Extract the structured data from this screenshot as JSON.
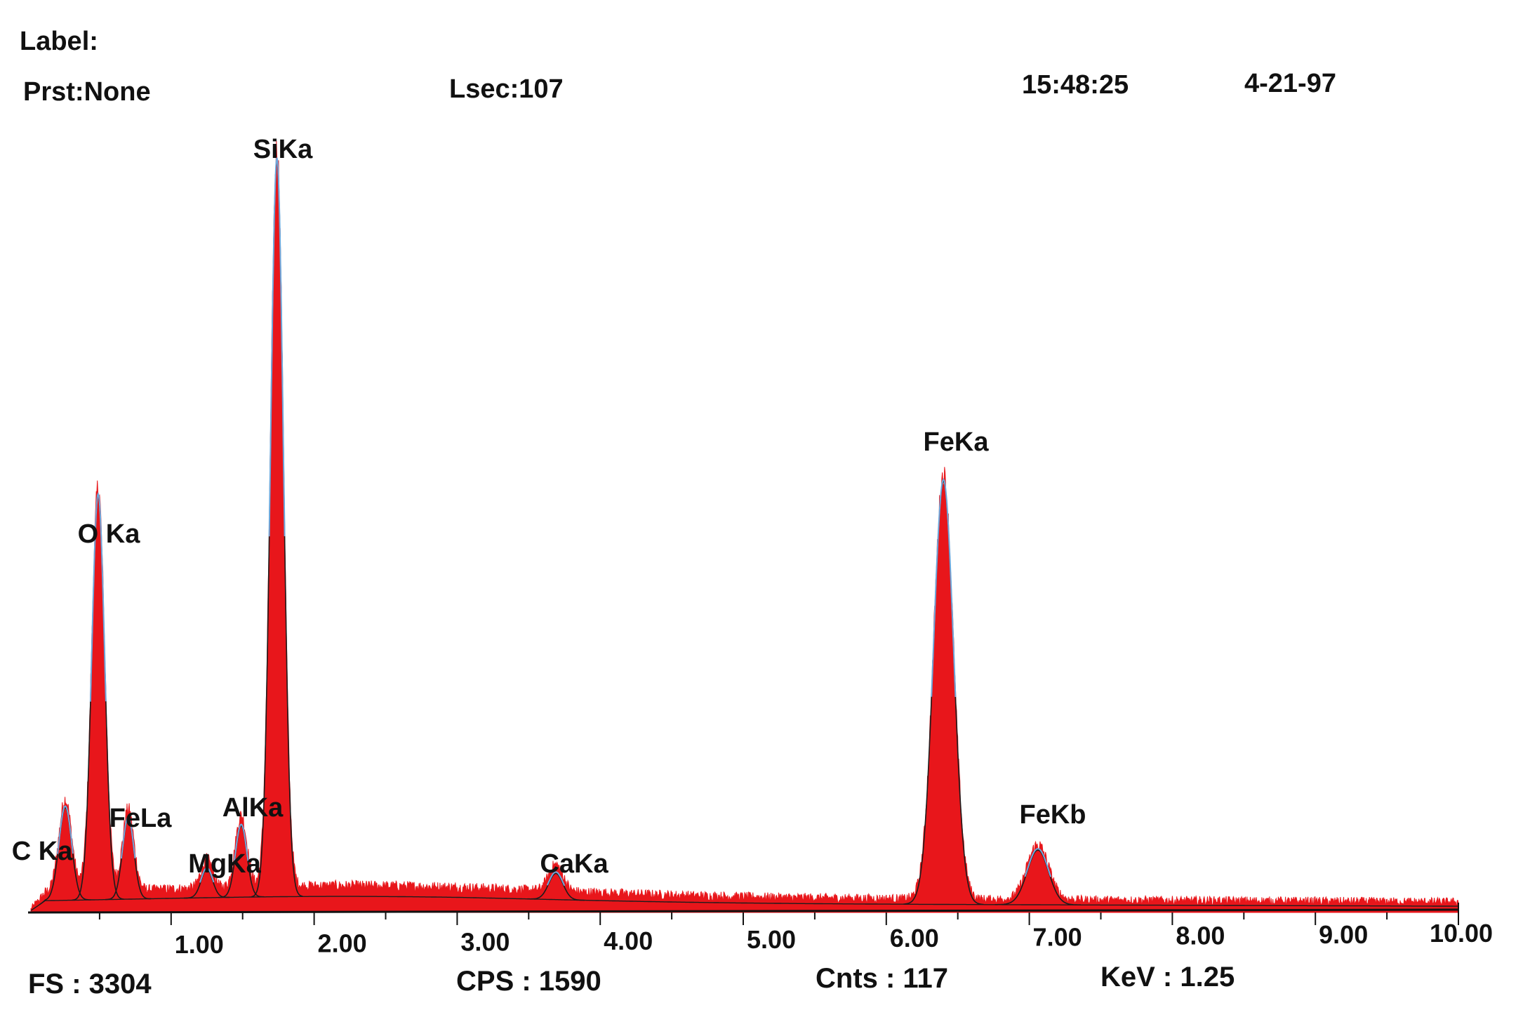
{
  "header": {
    "label": "Label:",
    "preset": "Prst:None",
    "lsec": "Lsec:107",
    "time": "15:48:25",
    "date": "4-21-97"
  },
  "footer": {
    "fs": "FS : 3304",
    "cps": "CPS : 1590",
    "cnts": "Cnts : 117",
    "kev": "KeV : 1.25"
  },
  "colors": {
    "fill": "#e8161b",
    "fit_line": "#1c1c1c",
    "fit_highlight": "#6fa8dc",
    "axis": "#111111"
  },
  "chart_data": {
    "type": "area",
    "xlim": [
      0,
      10
    ],
    "ylim": [
      0,
      3304
    ],
    "x_ticks": [
      "1.00",
      "2.00",
      "3.00",
      "4.00",
      "5.00",
      "6.00",
      "7.00",
      "8.00",
      "9.00",
      "10.00"
    ],
    "baseline": 90,
    "peaks": [
      {
        "label": "C Ka",
        "energy": 0.26,
        "height": 390,
        "width": 0.045
      },
      {
        "label": "O Ka",
        "energy": 0.49,
        "height": 1700,
        "width": 0.045
      },
      {
        "label": "FeLa",
        "energy": 0.7,
        "height": 340,
        "width": 0.04
      },
      {
        "label": "MgKa",
        "energy": 1.25,
        "height": 120,
        "width": 0.04
      },
      {
        "label": "AlKa",
        "energy": 1.49,
        "height": 300,
        "width": 0.04
      },
      {
        "label": "SiKa",
        "energy": 1.74,
        "height": 3100,
        "width": 0.045
      },
      {
        "label": "CaKa",
        "energy": 3.69,
        "height": 110,
        "width": 0.05
      },
      {
        "label": "FeKa",
        "energy": 6.4,
        "height": 1780,
        "width": 0.07
      },
      {
        "label": "FeKb",
        "energy": 7.06,
        "height": 230,
        "width": 0.075
      }
    ]
  }
}
